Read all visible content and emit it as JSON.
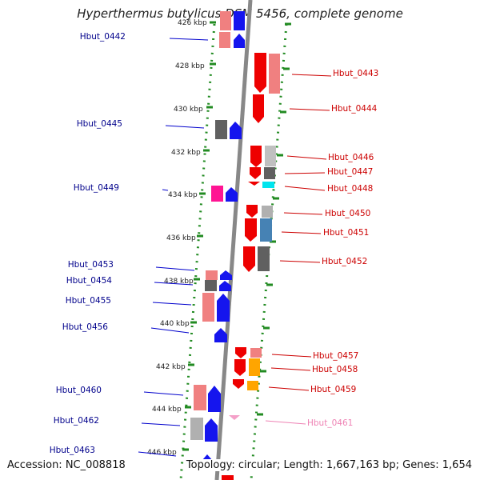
{
  "title": "Hyperthermus butylicus DSM 5456, complete genome",
  "accession": "Accession: NC_008818",
  "topology": "Topology: circular; Length: 1,667,163 bp; Genes: 1,654",
  "scale_labels": [
    "426 kbp",
    "428 kbp",
    "430 kbp",
    "432 kbp",
    "434 kbp",
    "436 kbp",
    "438 kbp",
    "440 kbp",
    "442 kbp",
    "444 kbp",
    "446 kbp"
  ],
  "genes_left": [
    "Hbut_0442",
    "Hbut_0445",
    "Hbut_0449",
    "Hbut_0453",
    "Hbut_0454",
    "Hbut_0455",
    "Hbut_0456",
    "Hbut_0460",
    "Hbut_0462",
    "Hbut_0463"
  ],
  "genes_right": [
    "Hbut_0443",
    "Hbut_0444",
    "Hbut_0446",
    "Hbut_0447",
    "Hbut_0448",
    "Hbut_0450",
    "Hbut_0451",
    "Hbut_0452",
    "Hbut_0457",
    "Hbut_0458",
    "Hbut_0459",
    "Hbut_0461"
  ],
  "colors": {
    "axis": "#888888",
    "forward_strand": "#0000ee",
    "reverse_strand": "#ee0000",
    "left_label": "#00008b",
    "right_label": "#cc0000",
    "faded_label": "#ee82b4",
    "scale_dots": "#228b22"
  }
}
